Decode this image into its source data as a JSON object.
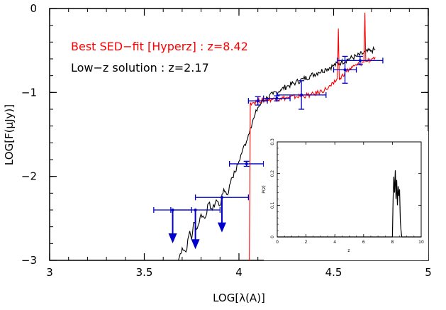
{
  "chart_data": [
    {
      "type": "line",
      "xlabel": "LOG[λ(A)]",
      "ylabel": "LOG[F(μJy)]",
      "xlim": [
        3,
        5
      ],
      "ylim": [
        -3,
        0
      ],
      "xticks": [
        "3",
        "3.5",
        "4",
        "4.5",
        "5"
      ],
      "yticks": [
        "0",
        "−1",
        "−2",
        "−3"
      ],
      "grid": false,
      "annotations": [
        {
          "text": "Best SED−fit [Hyperz]    : z=8.42",
          "color": "#ff0000"
        },
        {
          "text": "Low−z solution : z=2.17",
          "color": "#000000"
        }
      ],
      "series": [
        {
          "color": "#000000",
          "x": [
            3.68,
            3.7,
            3.72,
            3.74,
            3.75,
            3.76,
            3.78,
            3.8,
            3.82,
            3.84,
            3.86,
            3.88,
            3.9,
            3.92,
            3.94,
            3.96,
            3.98,
            4.0,
            4.02,
            4.04,
            4.06,
            4.08,
            4.1,
            4.12,
            4.15,
            4.18,
            4.22,
            4.26,
            4.3,
            4.34,
            4.38,
            4.42,
            4.46,
            4.5,
            4.54,
            4.58,
            4.62,
            4.66,
            4.7,
            4.72
          ],
          "y": [
            -3.0,
            -2.85,
            -2.9,
            -2.65,
            -2.75,
            -2.55,
            -2.62,
            -2.45,
            -2.5,
            -2.32,
            -2.4,
            -2.28,
            -2.35,
            -2.15,
            -2.22,
            -2.02,
            -1.95,
            -1.82,
            -1.68,
            -1.58,
            -1.42,
            -1.3,
            -1.18,
            -1.12,
            -1.06,
            -1.02,
            -0.97,
            -0.92,
            -0.88,
            -0.84,
            -0.8,
            -0.76,
            -0.72,
            -0.68,
            -0.64,
            -0.6,
            -0.57,
            -0.53,
            -0.5,
            -0.49
          ]
        },
        {
          "color": "#ff0000",
          "x": [
            4.055,
            4.06,
            4.08,
            4.1,
            4.14,
            4.18,
            4.22,
            4.26,
            4.3,
            4.34,
            4.38,
            4.42,
            4.46,
            4.5,
            4.52,
            4.525,
            4.53,
            4.56,
            4.6,
            4.64,
            4.66,
            4.665,
            4.67,
            4.7,
            4.72
          ],
          "y": [
            -3.0,
            -1.12,
            -1.12,
            -1.1,
            -1.09,
            -1.08,
            -1.07,
            -1.06,
            -1.05,
            -1.04,
            -1.03,
            -1.0,
            -0.96,
            -0.9,
            -0.83,
            -0.24,
            -0.85,
            -0.76,
            -0.7,
            -0.66,
            -0.64,
            -0.05,
            -0.63,
            -0.6,
            -0.58
          ]
        }
      ],
      "measurements": {
        "color": "#0000cc",
        "points": [
          {
            "x": 3.65,
            "y": -2.4,
            "xerr": 0.1
          },
          {
            "x": 3.77,
            "y": -2.4,
            "xerr": 0.13
          },
          {
            "x": 3.91,
            "y": -2.25,
            "xerr": 0.14
          },
          {
            "x": 4.04,
            "y": -1.85,
            "xerr": 0.09,
            "yerr": 0.03
          },
          {
            "x": 4.1,
            "y": -1.1,
            "xerr": 0.05,
            "yerr": 0.05
          },
          {
            "x": 4.2,
            "y": -1.07,
            "xerr": 0.07,
            "yerr": 0.03
          },
          {
            "x": 4.33,
            "y": -1.03,
            "xerr": 0.13,
            "yerr": 0.17
          },
          {
            "x": 4.56,
            "y": -0.73,
            "xerr": 0.06,
            "yerr": 0.16
          },
          {
            "x": 4.64,
            "y": -0.62,
            "xerr": 0.12,
            "yerr": 0.05
          }
        ],
        "upper_limits": [
          {
            "x": 3.65,
            "y": -2.4,
            "to": -2.78
          },
          {
            "x": 3.77,
            "y": -2.4,
            "to": -2.85
          },
          {
            "x": 3.91,
            "y": -2.25,
            "to": -2.65
          }
        ]
      }
    },
    {
      "type": "line",
      "xlabel": "z",
      "ylabel": "P(z)",
      "xlim": [
        0,
        10
      ],
      "ylim": [
        0,
        0.3
      ],
      "xticks": [
        "0",
        "2",
        "4",
        "6",
        "8",
        "10"
      ],
      "yticks": [
        "0",
        "0.1",
        "0.2",
        "0.3"
      ],
      "series": [
        {
          "color": "#000000",
          "x": [
            0,
            8.0,
            8.05,
            8.1,
            8.15,
            8.2,
            8.25,
            8.3,
            8.35,
            8.4,
            8.45,
            8.5,
            8.55,
            8.6,
            8.65,
            10
          ],
          "y": [
            0,
            0,
            0.12,
            0.19,
            0.14,
            0.21,
            0.12,
            0.18,
            0.1,
            0.16,
            0.13,
            0.15,
            0.05,
            0.02,
            0,
            0
          ]
        }
      ]
    }
  ]
}
